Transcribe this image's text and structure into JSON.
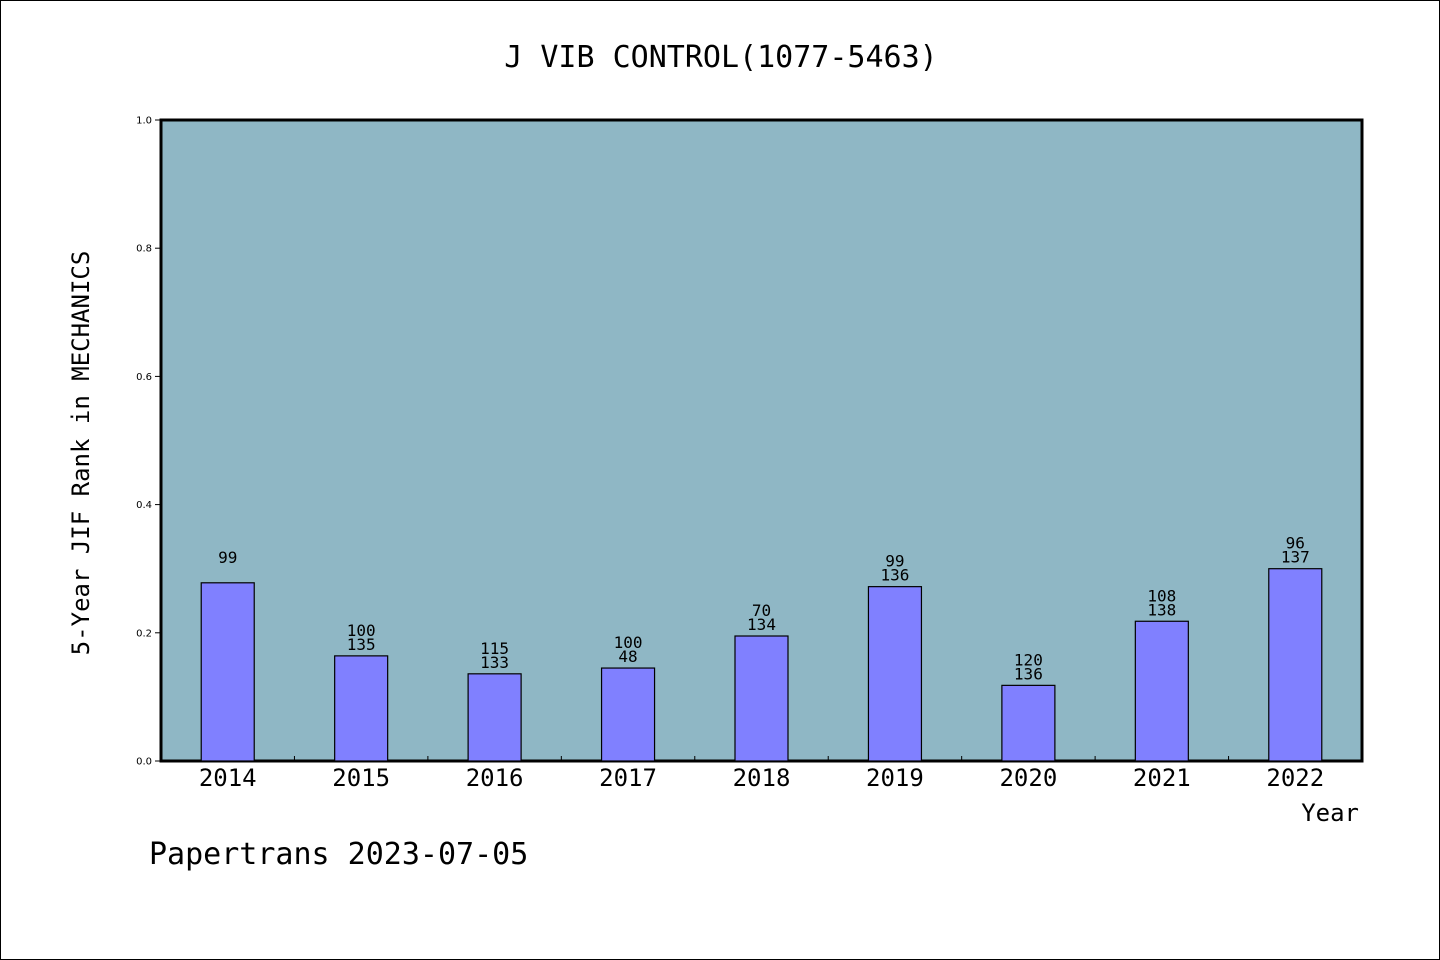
{
  "chart_data": {
    "type": "bar",
    "title": "J VIB CONTROL(1077-5463)",
    "xlabel": "Year",
    "ylabel": "5-Year JIF Rank in MECHANICS",
    "ylim": [
      0,
      1.0
    ],
    "yticks": [
      "0.0",
      "0.2",
      "0.4",
      "0.6",
      "0.8",
      "1.0"
    ],
    "categories": [
      "2014",
      "2015",
      "2016",
      "2017",
      "2018",
      "2019",
      "2020",
      "2021",
      "2022"
    ],
    "values": [
      0.278,
      0.164,
      0.136,
      0.145,
      0.195,
      0.272,
      0.118,
      0.218,
      0.3
    ],
    "bar_labels": [
      [
        "99",
        ""
      ],
      [
        "100",
        "135"
      ],
      [
        "115",
        "133"
      ],
      [
        "100",
        "48"
      ],
      [
        "70",
        "134"
      ],
      [
        "99",
        "136"
      ],
      [
        "120",
        "136"
      ],
      [
        "108",
        "138"
      ],
      [
        "96",
        "137"
      ]
    ],
    "colors": {
      "plot_background": "#8fb7c5",
      "bar_fill": "#8080ff",
      "bar_stroke": "#000000"
    }
  },
  "footer": {
    "text": "Papertrans 2023-07-05"
  }
}
